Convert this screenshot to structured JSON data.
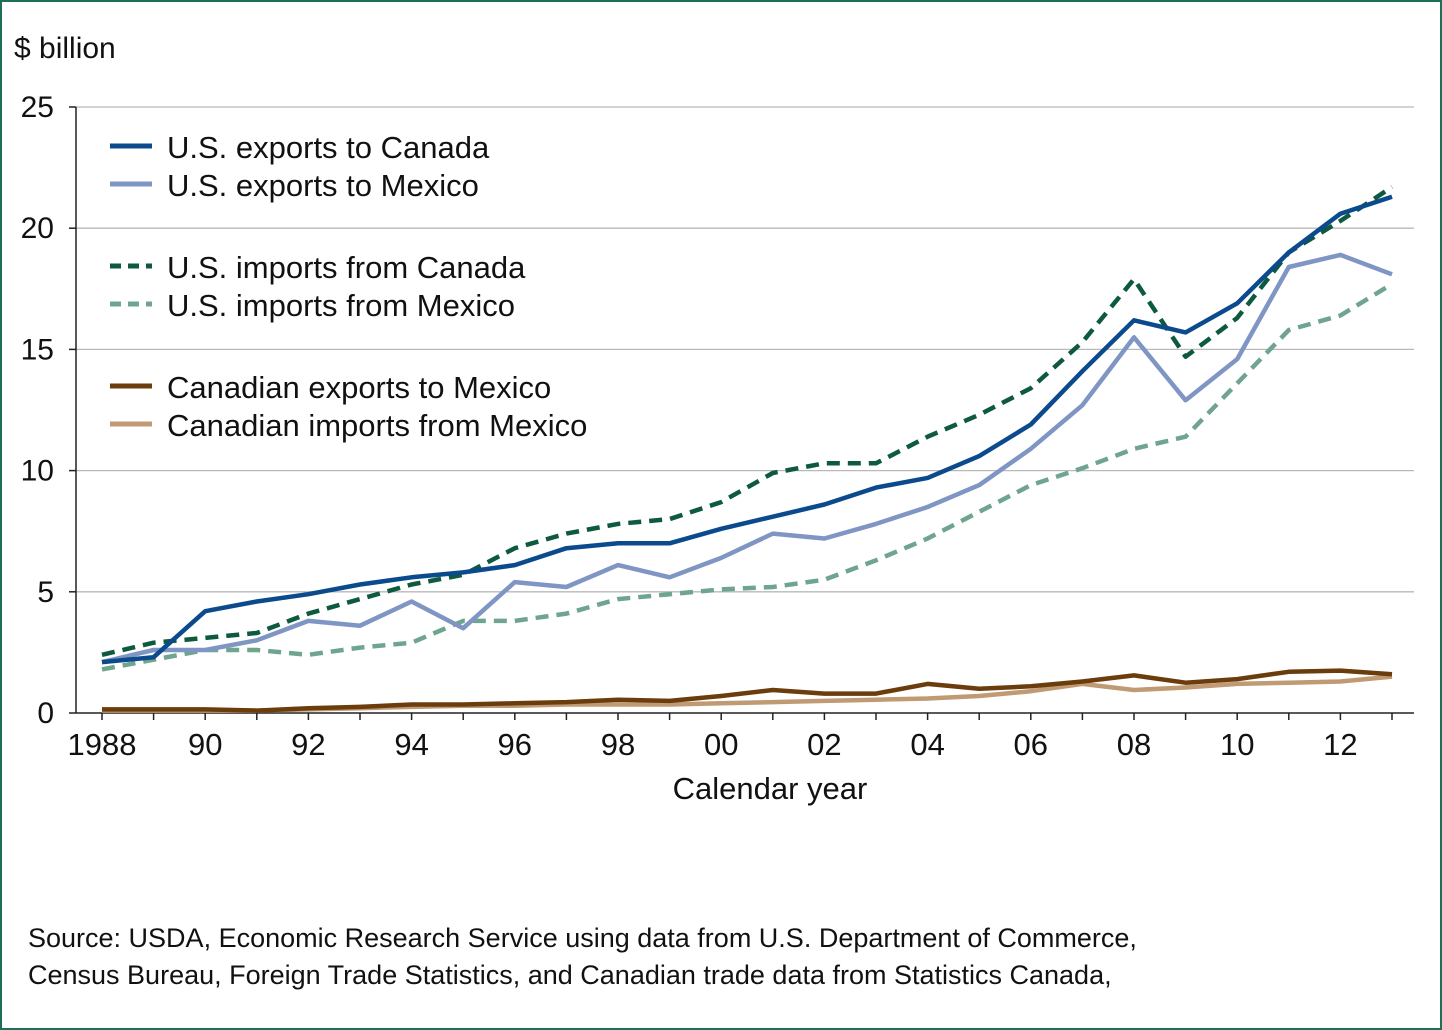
{
  "chart_data": {
    "type": "line",
    "ylabel": "$ billion",
    "xlabel": "Calendar year",
    "ylim": [
      0,
      25
    ],
    "yticks": [
      0,
      5,
      10,
      15,
      20,
      25
    ],
    "ytick_labels": [
      "0",
      "5",
      "10",
      "15",
      "20",
      "25"
    ],
    "xlim": [
      1988,
      2013
    ],
    "xticks": [
      1988,
      1990,
      1992,
      1994,
      1996,
      1998,
      2000,
      2002,
      2004,
      2006,
      2008,
      2010,
      2012
    ],
    "xtick_labels": [
      "1988",
      "90",
      "92",
      "94",
      "96",
      "98",
      "00",
      "02",
      "04",
      "06",
      "08",
      "10",
      "12"
    ],
    "grid": "horizontal",
    "legend_position": "top-left",
    "x": [
      1988,
      1989,
      1990,
      1991,
      1992,
      1993,
      1994,
      1995,
      1996,
      1997,
      1998,
      1999,
      2000,
      2001,
      2002,
      2003,
      2004,
      2005,
      2006,
      2007,
      2008,
      2009,
      2010,
      2011,
      2012,
      2013
    ],
    "series": [
      {
        "name": "U.S. exports to Canada",
        "color": "#0b4a8c",
        "dash": "solid",
        "values": [
          2.1,
          2.3,
          4.2,
          4.6,
          4.9,
          5.3,
          5.6,
          5.8,
          6.1,
          6.8,
          7.0,
          7.0,
          7.6,
          8.1,
          8.6,
          9.3,
          9.7,
          10.6,
          11.9,
          14.1,
          16.2,
          15.7,
          16.9,
          19.0,
          20.6,
          21.3
        ]
      },
      {
        "name": "U.S. exports to Mexico",
        "color": "#7f95c4",
        "dash": "solid",
        "values": [
          2.1,
          2.6,
          2.6,
          3.0,
          3.8,
          3.6,
          4.6,
          3.5,
          5.4,
          5.2,
          6.1,
          5.6,
          6.4,
          7.4,
          7.2,
          7.8,
          8.5,
          9.4,
          10.9,
          12.7,
          15.5,
          12.9,
          14.6,
          18.4,
          18.9,
          18.1
        ]
      },
      {
        "name": "U.S. imports from Canada",
        "color": "#0d5a3e",
        "dash": "dashed",
        "values": [
          2.4,
          2.9,
          3.1,
          3.3,
          4.1,
          4.7,
          5.3,
          5.7,
          6.8,
          7.4,
          7.8,
          8.0,
          8.7,
          9.9,
          10.3,
          10.3,
          11.4,
          12.3,
          13.4,
          15.3,
          17.9,
          14.7,
          16.3,
          19.0,
          20.3,
          21.7
        ]
      },
      {
        "name": "U.S. imports from Mexico",
        "color": "#6fa58e",
        "dash": "dashed",
        "values": [
          1.8,
          2.2,
          2.6,
          2.6,
          2.4,
          2.7,
          2.9,
          3.8,
          3.8,
          4.1,
          4.7,
          4.9,
          5.1,
          5.2,
          5.5,
          6.3,
          7.2,
          8.3,
          9.4,
          10.1,
          10.9,
          11.4,
          13.6,
          15.8,
          16.4,
          17.7
        ]
      },
      {
        "name": "Canadian exports to Mexico",
        "color": "#6b3c0c",
        "dash": "solid",
        "values": [
          0.15,
          0.15,
          0.15,
          0.1,
          0.2,
          0.25,
          0.35,
          0.35,
          0.4,
          0.45,
          0.55,
          0.5,
          0.7,
          0.95,
          0.8,
          0.8,
          1.2,
          1.0,
          1.1,
          1.3,
          1.55,
          1.25,
          1.4,
          1.7,
          1.75,
          1.6
        ]
      },
      {
        "name": "Canadian imports from Mexico",
        "color": "#c09a72",
        "dash": "solid",
        "values": [
          0.1,
          0.1,
          0.1,
          0.1,
          0.15,
          0.2,
          0.25,
          0.3,
          0.3,
          0.35,
          0.35,
          0.35,
          0.4,
          0.45,
          0.5,
          0.55,
          0.6,
          0.7,
          0.9,
          1.2,
          0.95,
          1.05,
          1.2,
          1.25,
          1.3,
          1.5
        ]
      }
    ]
  },
  "source_lines": [
    "Source: USDA, Economic Research Service using data from U.S. Department of Commerce,",
    "Census Bureau, Foreign Trade Statistics, and Canadian trade data from Statistics Canada,"
  ]
}
